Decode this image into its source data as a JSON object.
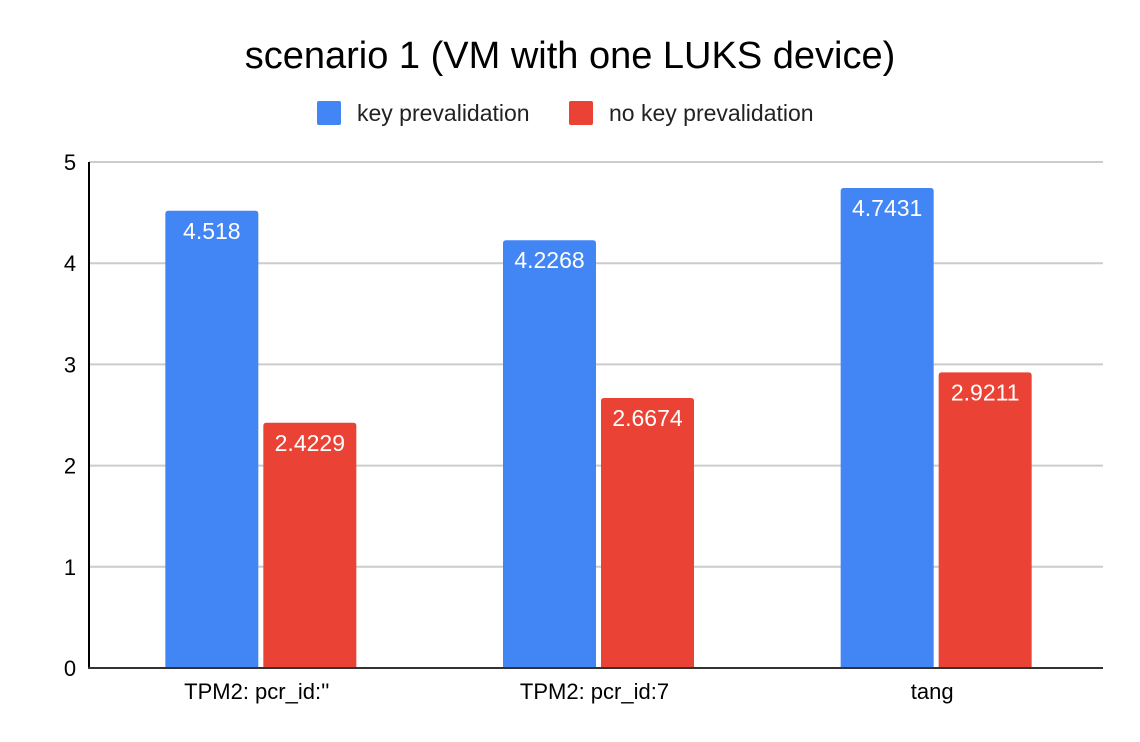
{
  "chart_data": {
    "type": "bar",
    "title": "scenario 1 (VM with one LUKS device)",
    "xlabel": "",
    "ylabel": "",
    "categories": [
      "TPM2: pcr_id:''",
      "TPM2: pcr_id:7",
      "tang"
    ],
    "series": [
      {
        "name": "key prevalidation",
        "color": "#4285f4",
        "values": [
          4.518,
          4.2268,
          4.7431
        ],
        "labels": [
          "4.518",
          "4.2268",
          "4.7431"
        ]
      },
      {
        "name": "no key prevalidation",
        "color": "#ea4335",
        "values": [
          2.4229,
          2.6674,
          2.9211
        ],
        "labels": [
          "2.4229",
          "2.6674",
          "2.9211"
        ]
      }
    ],
    "ylim": [
      0,
      5
    ],
    "yticks": [
      "0",
      "1",
      "2",
      "3",
      "4",
      "5"
    ],
    "grid": true,
    "legend": "top-center"
  }
}
